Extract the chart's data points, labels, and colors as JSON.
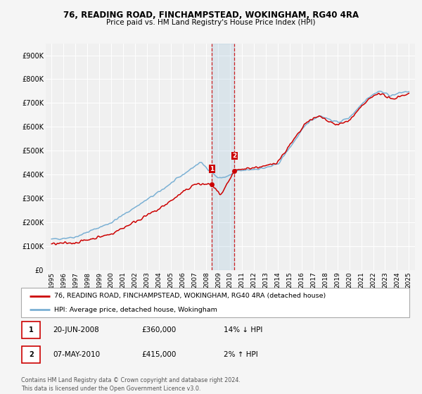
{
  "title": "76, READING ROAD, FINCHAMPSTEAD, WOKINGHAM, RG40 4RA",
  "subtitle": "Price paid vs. HM Land Registry's House Price Index (HPI)",
  "legend_line1": "76, READING ROAD, FINCHAMPSTEAD, WOKINGHAM, RG40 4RA (detached house)",
  "legend_line2": "HPI: Average price, detached house, Wokingham",
  "footnote": "Contains HM Land Registry data © Crown copyright and database right 2024.\nThis data is licensed under the Open Government Licence v3.0.",
  "sale1_date": "20-JUN-2008",
  "sale1_price": "£360,000",
  "sale1_hpi": "14% ↓ HPI",
  "sale2_date": "07-MAY-2010",
  "sale2_price": "£415,000",
  "sale2_hpi": "2% ↑ HPI",
  "property_color": "#cc0000",
  "hpi_color": "#7ab0d4",
  "sale1_x": 2008.47,
  "sale1_y": 360000,
  "sale2_x": 2010.35,
  "sale2_y": 415000,
  "shade_x1": 2008.47,
  "shade_x2": 2010.35,
  "ylim": [
    0,
    950000
  ],
  "xlim": [
    1994.5,
    2025.5
  ],
  "yticks": [
    0,
    100000,
    200000,
    300000,
    400000,
    500000,
    600000,
    700000,
    800000,
    900000
  ],
  "ytick_labels": [
    "£0",
    "£100K",
    "£200K",
    "£300K",
    "£400K",
    "£500K",
    "£600K",
    "£700K",
    "£800K",
    "£900K"
  ],
  "xticks": [
    1995,
    1996,
    1997,
    1998,
    1999,
    2000,
    2001,
    2002,
    2003,
    2004,
    2005,
    2006,
    2007,
    2008,
    2009,
    2010,
    2011,
    2012,
    2013,
    2014,
    2015,
    2016,
    2017,
    2018,
    2019,
    2020,
    2021,
    2022,
    2023,
    2024,
    2025
  ],
  "background_color": "#f5f5f5",
  "grid_color": "#dddddd",
  "plot_bg": "#f0f0f0"
}
